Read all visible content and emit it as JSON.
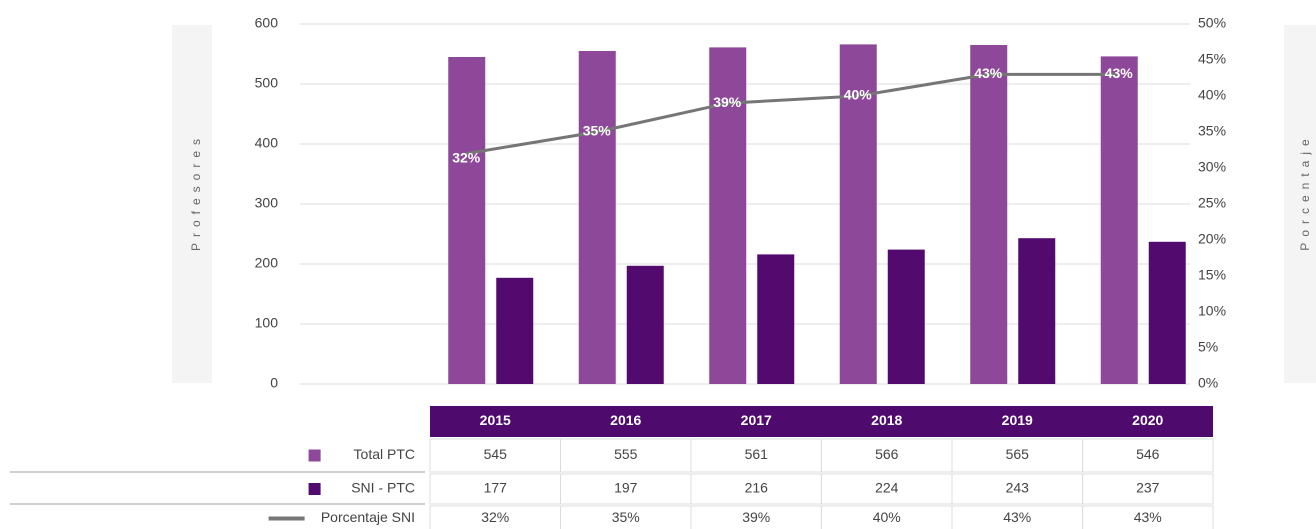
{
  "chart_data": {
    "type": "bar",
    "ylabel": "Profesores",
    "y2label": "Porcentaje",
    "categories": [
      "2015",
      "2016",
      "2017",
      "2018",
      "2019",
      "2020"
    ],
    "series": [
      {
        "name": "Total PTC",
        "color": "#8e4899",
        "values": [
          545,
          555,
          561,
          566,
          565,
          546
        ]
      },
      {
        "name": "SNI - PTC",
        "color": "#520a6f",
        "values": [
          177,
          197,
          216,
          224,
          243,
          237
        ]
      },
      {
        "name": "Porcentaje SNI",
        "type": "line",
        "axis": "y2",
        "color": "#767676",
        "values": [
          32,
          35,
          39,
          40,
          43,
          43
        ],
        "value_labels": [
          "32%",
          "35%",
          "39%",
          "40%",
          "43%",
          "43%"
        ]
      }
    ],
    "ylim": [
      0,
      600
    ],
    "yticks": [
      0,
      100,
      200,
      300,
      400,
      500,
      600
    ],
    "y2lim": [
      0,
      50
    ],
    "y2ticks": [
      {
        "value": 0,
        "label": "0%"
      },
      {
        "value": 5,
        "label": "5%"
      },
      {
        "value": 10,
        "label": "10%"
      },
      {
        "value": 15,
        "label": "15%"
      },
      {
        "value": 20,
        "label": "20%"
      },
      {
        "value": 25,
        "label": "25%"
      },
      {
        "value": 30,
        "label": "30%"
      },
      {
        "value": 35,
        "label": "35%"
      },
      {
        "value": 40,
        "label": "40%"
      },
      {
        "value": 45,
        "label": "45%"
      },
      {
        "value": 50,
        "label": "50%"
      }
    ],
    "grid": true,
    "header_color": "#4f0a6e"
  }
}
